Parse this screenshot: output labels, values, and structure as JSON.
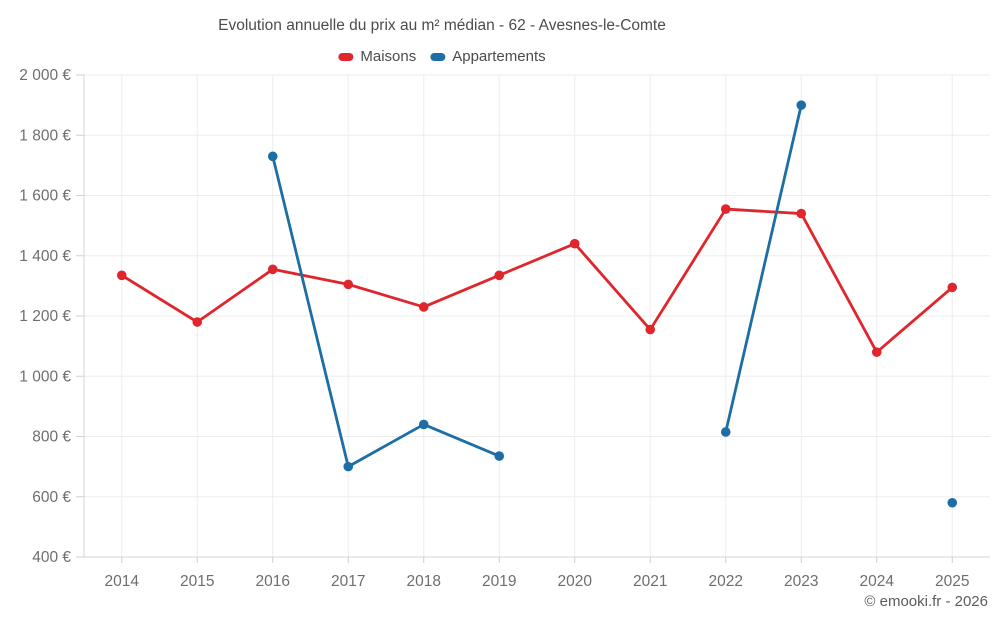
{
  "header": {
    "title": "Evolution annuelle du prix au m² médian - 62 - Avesnes-le-Comte"
  },
  "footer": {
    "text": "© emooki.fr - 2026"
  },
  "colors": {
    "maisons": "#e0262d",
    "appartements": "#1c6ea4",
    "gridline": "#ededed",
    "axis": "#d4d4d4",
    "tick": "#cfcfcf",
    "axis_label": "#6e6e6e"
  },
  "chart_data": {
    "type": "line",
    "title": "Evolution annuelle du prix au m² médian - 62 - Avesnes-le-Comte",
    "categories": [
      "2014",
      "2015",
      "2016",
      "2017",
      "2018",
      "2019",
      "2020",
      "2021",
      "2022",
      "2023",
      "2024",
      "2025"
    ],
    "series": [
      {
        "name": "Maisons",
        "color": "#e0262d",
        "values": [
          1335,
          1180,
          1355,
          1305,
          1230,
          1335,
          1440,
          1155,
          1555,
          1540,
          1080,
          1295
        ]
      },
      {
        "name": "Appartements",
        "color": "#1c6ea4",
        "values": [
          null,
          null,
          1730,
          700,
          840,
          735,
          null,
          null,
          815,
          1900,
          null,
          580
        ]
      }
    ],
    "xlabel": "",
    "ylabel": "",
    "ylim": [
      400,
      2000
    ],
    "yticks": [
      400,
      600,
      800,
      1000,
      1200,
      1400,
      1600,
      1800,
      2000
    ],
    "ytick_labels": [
      "400 €",
      "600 €",
      "800 €",
      "1 000 €",
      "1 200 €",
      "1 400 €",
      "1 600 €",
      "1 800 €",
      "2 000 €"
    ],
    "grid": true,
    "legend": [
      "Maisons",
      "Appartements"
    ],
    "legend_position": "top"
  }
}
